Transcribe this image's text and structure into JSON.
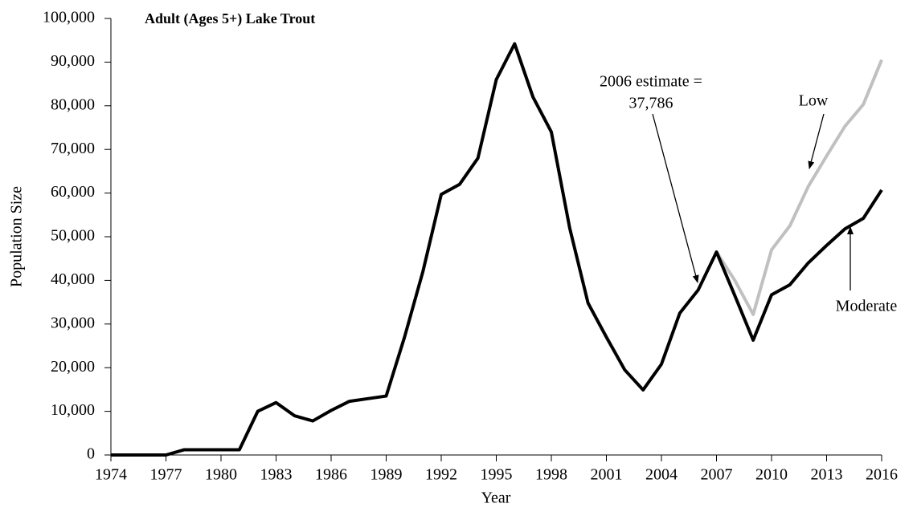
{
  "chart_data": {
    "type": "line",
    "title": "Adult (Ages 5+) Lake Trout",
    "x_label": "Year",
    "y_label": "Population Size",
    "annotation": [
      "2006 estimate =",
      "37,786"
    ],
    "x": [
      1974,
      1975,
      1976,
      1977,
      1978,
      1979,
      1980,
      1981,
      1982,
      1983,
      1984,
      1985,
      1986,
      1987,
      1988,
      1989,
      1990,
      1991,
      1992,
      1993,
      1994,
      1995,
      1996,
      1997,
      1998,
      1999,
      2000,
      2001,
      2002,
      2003,
      2004,
      2005,
      2006,
      2007,
      2008,
      2009,
      2010,
      2011,
      2012,
      2013,
      2014,
      2015,
      2016
    ],
    "series": [
      {
        "name": "Low",
        "color": "#c0c0c0",
        "values": [
          null,
          null,
          null,
          null,
          null,
          null,
          null,
          null,
          null,
          null,
          null,
          null,
          null,
          null,
          null,
          null,
          null,
          null,
          null,
          null,
          null,
          null,
          null,
          null,
          null,
          null,
          null,
          null,
          null,
          null,
          null,
          null,
          null,
          46500,
          40000,
          32200,
          47000,
          52500,
          61500,
          68500,
          75300,
          80300,
          90500
        ]
      },
      {
        "name": "Moderate",
        "color": "#000000",
        "values": [
          0,
          0,
          0,
          0,
          1200,
          1200,
          1200,
          1200,
          10000,
          12000,
          9000,
          7800,
          10200,
          12300,
          12900,
          13500,
          27000,
          42000,
          59700,
          62000,
          68000,
          86000,
          94200,
          82000,
          74000,
          52000,
          34800,
          27000,
          19500,
          14900,
          20800,
          32500,
          37786,
          46500,
          36500,
          26300,
          36700,
          39000,
          44000,
          48000,
          51800,
          54200,
          60700
        ]
      }
    ],
    "xlim": [
      1974,
      2016
    ],
    "xticks": [
      1974,
      1977,
      1980,
      1983,
      1986,
      1989,
      1992,
      1995,
      1998,
      2001,
      2004,
      2007,
      2010,
      2013,
      2016
    ],
    "ylim": [
      0,
      100000
    ],
    "yticks": [
      0,
      {
        "value": 10000,
        "label": "10,000"
      },
      {
        "value": 20000,
        "label": "20,000"
      },
      {
        "value": 30000,
        "label": "30,000"
      },
      {
        "value": 40000,
        "label": "40,000"
      },
      {
        "value": 50000,
        "label": "50,000"
      },
      {
        "value": 60000,
        "label": "60,000"
      },
      {
        "value": 70000,
        "label": "70,000"
      },
      {
        "value": 80000,
        "label": "80,000"
      },
      {
        "value": 90000,
        "label": "90,000"
      },
      {
        "value": 100000,
        "label": "100,000"
      }
    ],
    "grid": false
  }
}
